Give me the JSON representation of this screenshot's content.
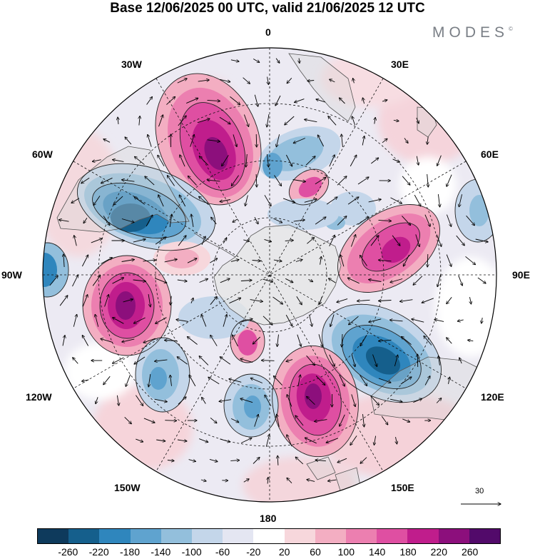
{
  "title": "Base 12/06/2025 00 UTC, valid 21/06/2025 12 UTC",
  "brand": "MODES",
  "brand_mark": "©",
  "longitude_labels": {
    "top": "0",
    "bottom": "180",
    "left": "90W",
    "right": "90E",
    "upper_left_1": "30W",
    "upper_left_2": "60W",
    "upper_right_1": "30E",
    "upper_right_2": "60E",
    "lower_left_1": "120W",
    "lower_left_2": "150W",
    "lower_right_1": "120E",
    "lower_right_2": "150E"
  },
  "reference_vector": {
    "label": "30"
  },
  "colorbar": {
    "ticks": [
      "-260",
      "-220",
      "-180",
      "-140",
      "-100",
      "-60",
      "-20",
      "20",
      "60",
      "100",
      "140",
      "180",
      "220",
      "260"
    ],
    "colors": [
      "#0e3a5c",
      "#155f8c",
      "#2f86bd",
      "#5fa3cf",
      "#93bfdc",
      "#c4d6ea",
      "#e4e6f2",
      "#ffffff",
      "#f7d7dc",
      "#f3aec2",
      "#ec7fb0",
      "#df4fa2",
      "#c01d8c",
      "#8c0f7c",
      "#520a6a"
    ]
  },
  "map_colors": {
    "land": "#d8d8d8",
    "coast": "#555555",
    "antarctica": "#e6e6e6"
  }
}
